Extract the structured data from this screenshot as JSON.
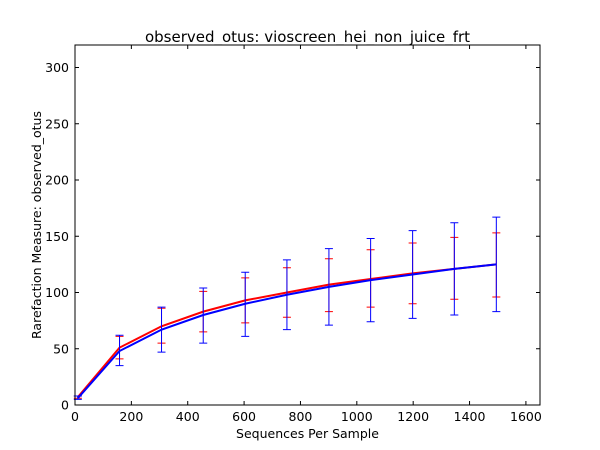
{
  "chart_data": {
    "type": "line",
    "title": "observed_otus: vioscreen_hei_non_juice_frt",
    "xlabel": "Sequences Per Sample",
    "ylabel": "Rarefaction Measure: observed_otus",
    "xlim": [
      0,
      1650
    ],
    "ylim": [
      0,
      320
    ],
    "xticks": [
      0,
      200,
      400,
      600,
      800,
      1000,
      1200,
      1400,
      1600
    ],
    "yticks": [
      0,
      50,
      100,
      150,
      200,
      250,
      300
    ],
    "x": [
      10,
      158,
      307,
      455,
      604,
      752,
      901,
      1049,
      1198,
      1346,
      1495
    ],
    "series": [
      {
        "name": "red",
        "color": "#ff0000",
        "values": [
          7,
          51,
          70,
          83,
          93,
          100,
          107,
          112,
          117,
          121,
          125
        ],
        "err_low": [
          6,
          41,
          55,
          65,
          73,
          78,
          83,
          87,
          90,
          94,
          96
        ],
        "err_high": [
          8,
          61,
          86,
          101,
          113,
          122,
          130,
          138,
          144,
          149,
          153
        ]
      },
      {
        "name": "blue",
        "color": "#0000ff",
        "values": [
          6,
          48,
          67,
          80,
          90,
          98,
          105,
          111,
          116,
          121,
          125
        ],
        "err_low": [
          5,
          35,
          47,
          55,
          61,
          67,
          71,
          74,
          77,
          80,
          83
        ],
        "err_high": [
          8,
          62,
          87,
          104,
          118,
          129,
          139,
          148,
          155,
          162,
          167
        ]
      }
    ]
  }
}
